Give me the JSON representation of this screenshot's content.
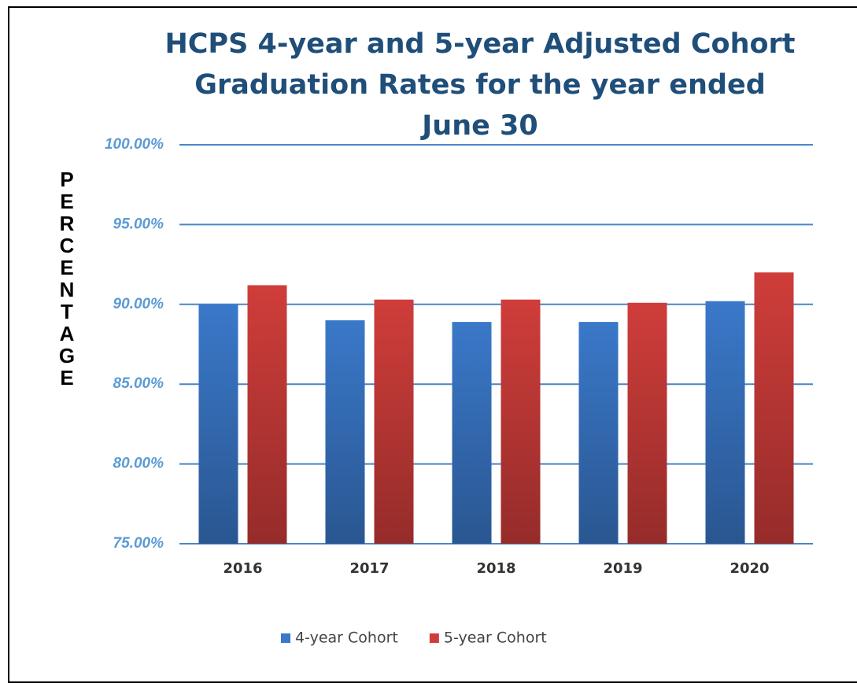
{
  "chart_data": {
    "type": "bar",
    "title": "HCPS 4-year and 5-year Adjusted Cohort Graduation Rates for the year ended June 30",
    "y_axis_label": "PERCENTAGE",
    "categories": [
      "2016",
      "2017",
      "2018",
      "2019",
      "2020"
    ],
    "series": [
      {
        "name": "4-year Cohort",
        "color": "#3a78c9",
        "values": [
          90.0,
          89.0,
          88.9,
          88.9,
          90.2
        ]
      },
      {
        "name": "5-year Cohort",
        "color": "#cf3d3a",
        "values": [
          91.2,
          90.3,
          90.3,
          90.1,
          92.0
        ]
      }
    ],
    "ylim": [
      75,
      100
    ],
    "yticks": [
      {
        "value": 75,
        "label": "75.00%"
      },
      {
        "value": 80,
        "label": "80.00%"
      },
      {
        "value": 85,
        "label": "85.00%"
      },
      {
        "value": 90,
        "label": "90.00%"
      },
      {
        "value": 95,
        "label": "95.00%"
      },
      {
        "value": 100,
        "label": "100.00%"
      }
    ],
    "grid": true,
    "legend": "bottom"
  }
}
